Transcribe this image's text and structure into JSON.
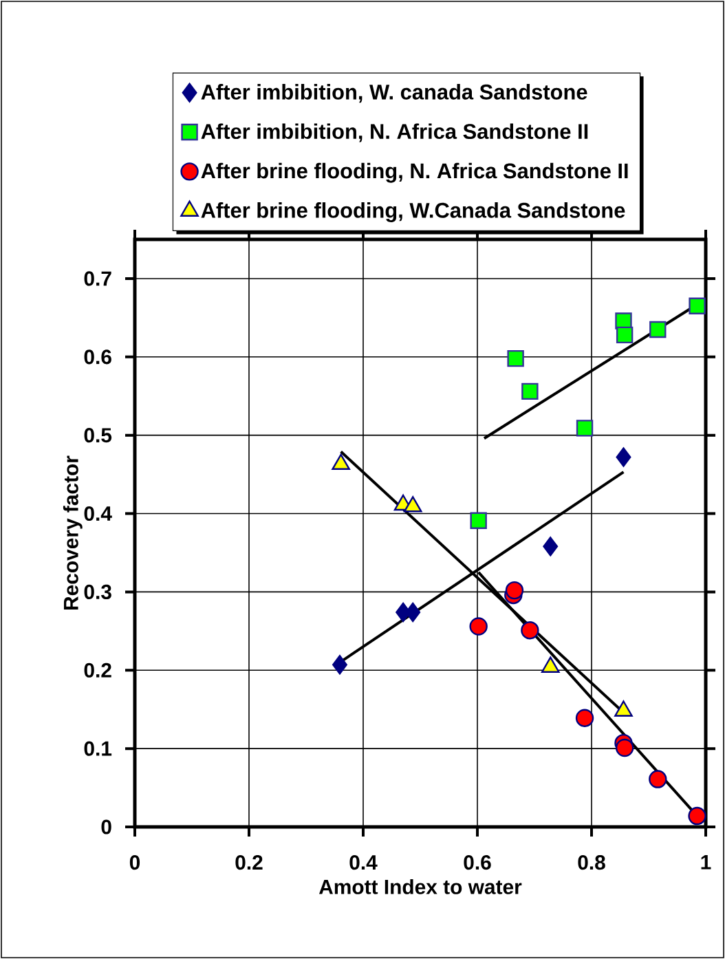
{
  "chart_data": {
    "type": "scatter",
    "xlabel": "Amott Index to water",
    "ylabel": "Recovery factor",
    "xlim": [
      0,
      1
    ],
    "xticks": [
      0,
      0.2,
      0.4,
      0.6,
      0.8,
      1
    ],
    "ylim": [
      0,
      0.75
    ],
    "yticks": [
      0,
      0.1,
      0.2,
      0.3,
      0.4,
      0.5,
      0.6,
      0.7
    ],
    "grid": true,
    "legend": "top",
    "series": [
      {
        "name": "After imbibition, W. canada Sandstone",
        "color": "#000080",
        "marker": "diamond",
        "x": [
          0.359,
          0.47,
          0.487,
          0.728,
          0.856
        ],
        "values": [
          0.207,
          0.274,
          0.274,
          0.358,
          0.472
        ]
      },
      {
        "name": "After imbibition, N. Africa Sandstone II",
        "color": "#00ff00",
        "marker": "square",
        "x": [
          0.602,
          0.667,
          0.692,
          0.788,
          0.856,
          0.858,
          0.916,
          0.985
        ],
        "values": [
          0.391,
          0.598,
          0.556,
          0.509,
          0.646,
          0.628,
          0.635,
          0.665
        ]
      },
      {
        "name": "After brine flooding, N. Africa Sandstone II",
        "color": "#ff0000",
        "marker": "circle",
        "x": [
          0.602,
          0.663,
          0.665,
          0.692,
          0.788,
          0.856,
          0.858,
          0.916,
          0.985
        ],
        "values": [
          0.256,
          0.296,
          0.302,
          0.251,
          0.139,
          0.107,
          0.101,
          0.061,
          0.014
        ]
      },
      {
        "name": "After brine flooding, W.Canada Sandstone",
        "color": "#ffff00",
        "marker": "triangle",
        "x": [
          0.361,
          0.47,
          0.487,
          0.728,
          0.856
        ],
        "values": [
          0.463,
          0.411,
          0.409,
          0.204,
          0.148
        ]
      },
      {
        "type": "line",
        "color": "#000000",
        "marker": "none",
        "x": [
          0.359,
          0.856
        ],
        "values": [
          0.21,
          0.453
        ]
      },
      {
        "type": "line",
        "color": "#000000",
        "marker": "none",
        "x": [
          0.612,
          0.985
        ],
        "values": [
          0.496,
          0.667
        ]
      },
      {
        "type": "line",
        "color": "#000000",
        "marker": "none",
        "x": [
          0.361,
          0.856
        ],
        "values": [
          0.479,
          0.146
        ]
      },
      {
        "type": "line",
        "color": "#000000",
        "marker": "none",
        "x": [
          0.602,
          0.985
        ],
        "values": [
          0.325,
          0.014
        ]
      }
    ]
  }
}
